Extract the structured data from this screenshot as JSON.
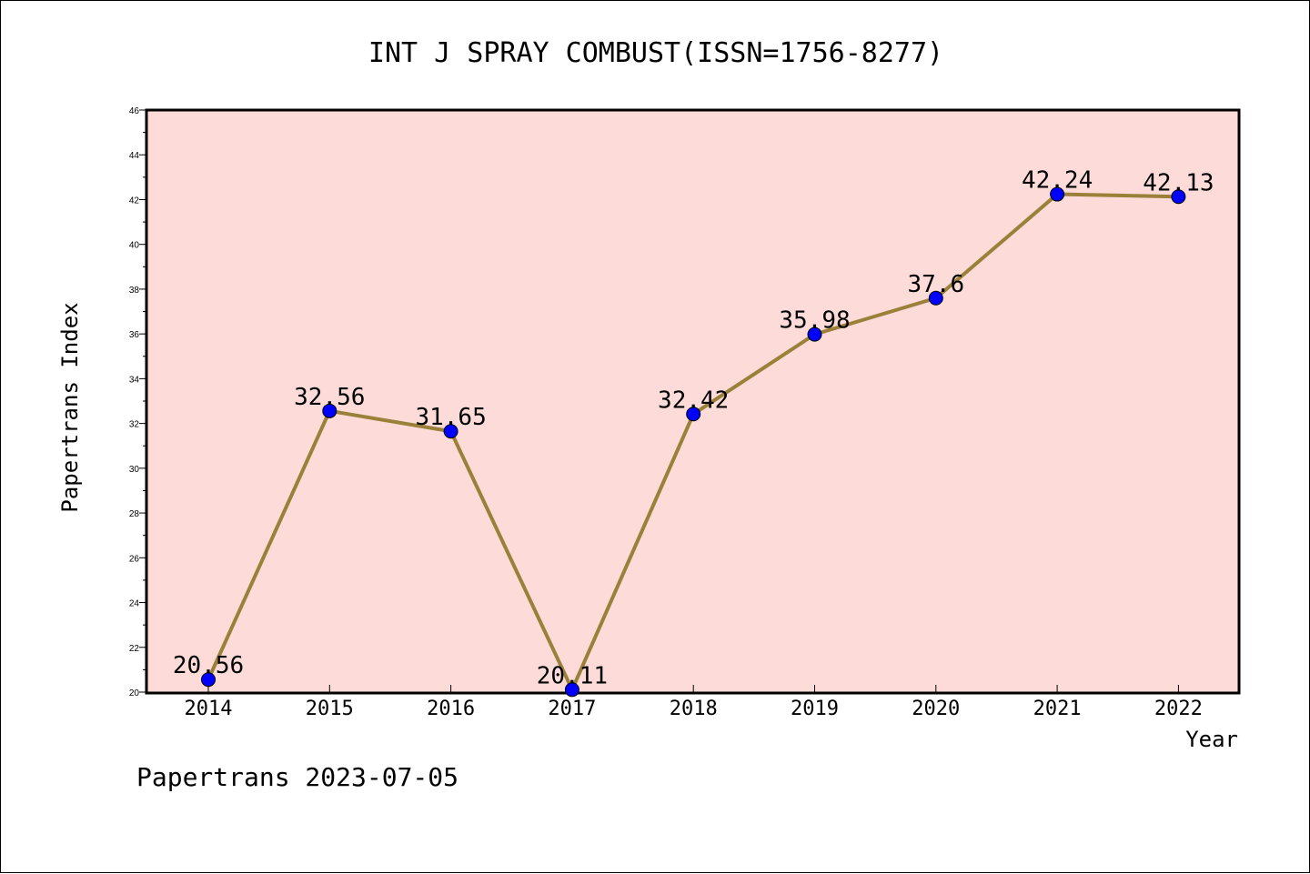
{
  "chart_data": {
    "type": "line",
    "title": "INT J SPRAY COMBUST(ISSN=1756-8277)",
    "xlabel": "Year",
    "ylabel": "Papertrans Index",
    "categories": [
      "2014",
      "2015",
      "2016",
      "2017",
      "2018",
      "2019",
      "2020",
      "2021",
      "2022"
    ],
    "series": [
      {
        "values": [
          20.56,
          32.56,
          31.65,
          20.11,
          32.42,
          35.98,
          37.6,
          42.24,
          42.13
        ],
        "data_labels": [
          "20.56",
          "32.56",
          "31.65",
          "20.11",
          "32.42",
          "35.98",
          "37.6",
          "42.24",
          "42.13"
        ],
        "line_color": "#9a8038",
        "marker_color": "#0000ff"
      }
    ],
    "ylim": [
      20,
      46
    ],
    "y_ticks": [
      "20",
      "22",
      "24",
      "26",
      "28",
      "30",
      "32",
      "34",
      "36",
      "38",
      "40",
      "42",
      "44",
      "46"
    ],
    "plot_background": "#fddbd8",
    "grid": false,
    "legend": "none"
  },
  "footer": {
    "text": "Papertrans 2023-07-05"
  }
}
